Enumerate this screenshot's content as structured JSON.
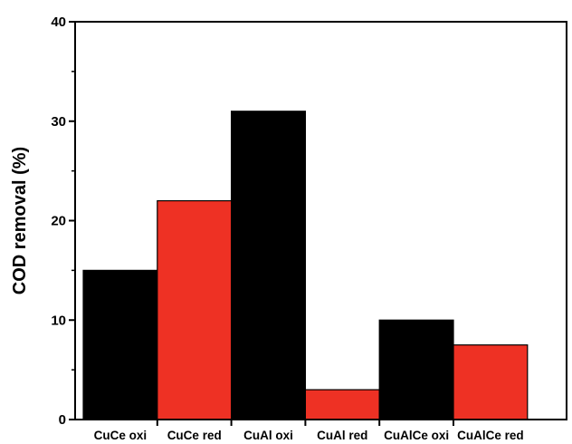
{
  "chart_data": {
    "type": "bar",
    "title": "",
    "xlabel": "",
    "ylabel": "COD removal (%)",
    "ylim": [
      0,
      40
    ],
    "yticks": [
      0,
      10,
      20,
      30,
      40
    ],
    "grid": false,
    "legend": "none",
    "categories": [
      "CuCe oxi",
      "CuCe red",
      "CuAl oxi",
      "CuAl red",
      "CuAlCe oxi",
      "CuAlCe red"
    ],
    "values": [
      15,
      22,
      31,
      3,
      10,
      7.5
    ],
    "bar_colors": [
      "#000000",
      "#ee3124",
      "#000000",
      "#ee3124",
      "#000000",
      "#ee3124"
    ]
  }
}
